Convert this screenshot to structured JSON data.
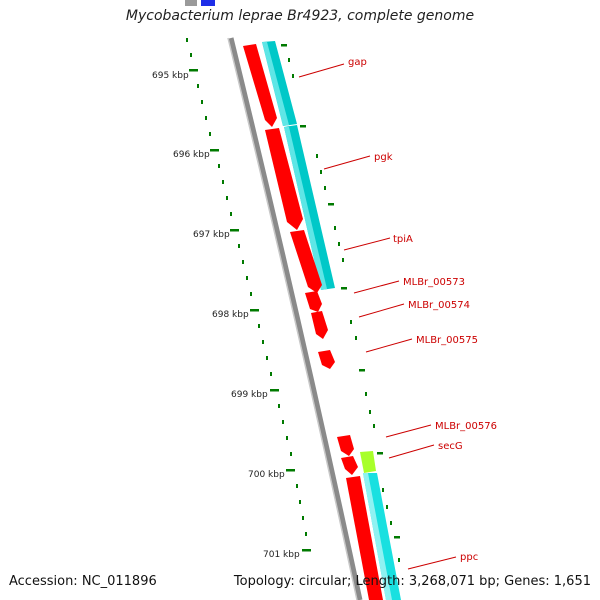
{
  "title": "Mycobacterium leprae Br4923, complete genome",
  "footer": {
    "accession": "Accession: NC_011896",
    "summary": "Topology: circular; Length: 3,268,071 bp; Genes: 1,651"
  },
  "ruler": {
    "ticks": [
      "695 kbp",
      "696 kbp",
      "697 kbp",
      "698 kbp",
      "699 kbp",
      "700 kbp",
      "701 kbp"
    ]
  },
  "genes": [
    {
      "label": "gap"
    },
    {
      "label": "pgk"
    },
    {
      "label": "tpiA"
    },
    {
      "label": "MLBr_00573"
    },
    {
      "label": "MLBr_00574"
    },
    {
      "label": "MLBr_00575"
    },
    {
      "label": "MLBr_00576"
    },
    {
      "label": "secG"
    },
    {
      "label": "ppc"
    }
  ],
  "colors": {
    "cds": "#ff0000",
    "cds_shadow": "#b30000",
    "gene": "#00c8c8",
    "gene_light": "#20e0e0",
    "secg": "#a8ff2a",
    "backbone": "#8a8a8a",
    "ruler": "#007a00",
    "label": "#cc0000"
  }
}
